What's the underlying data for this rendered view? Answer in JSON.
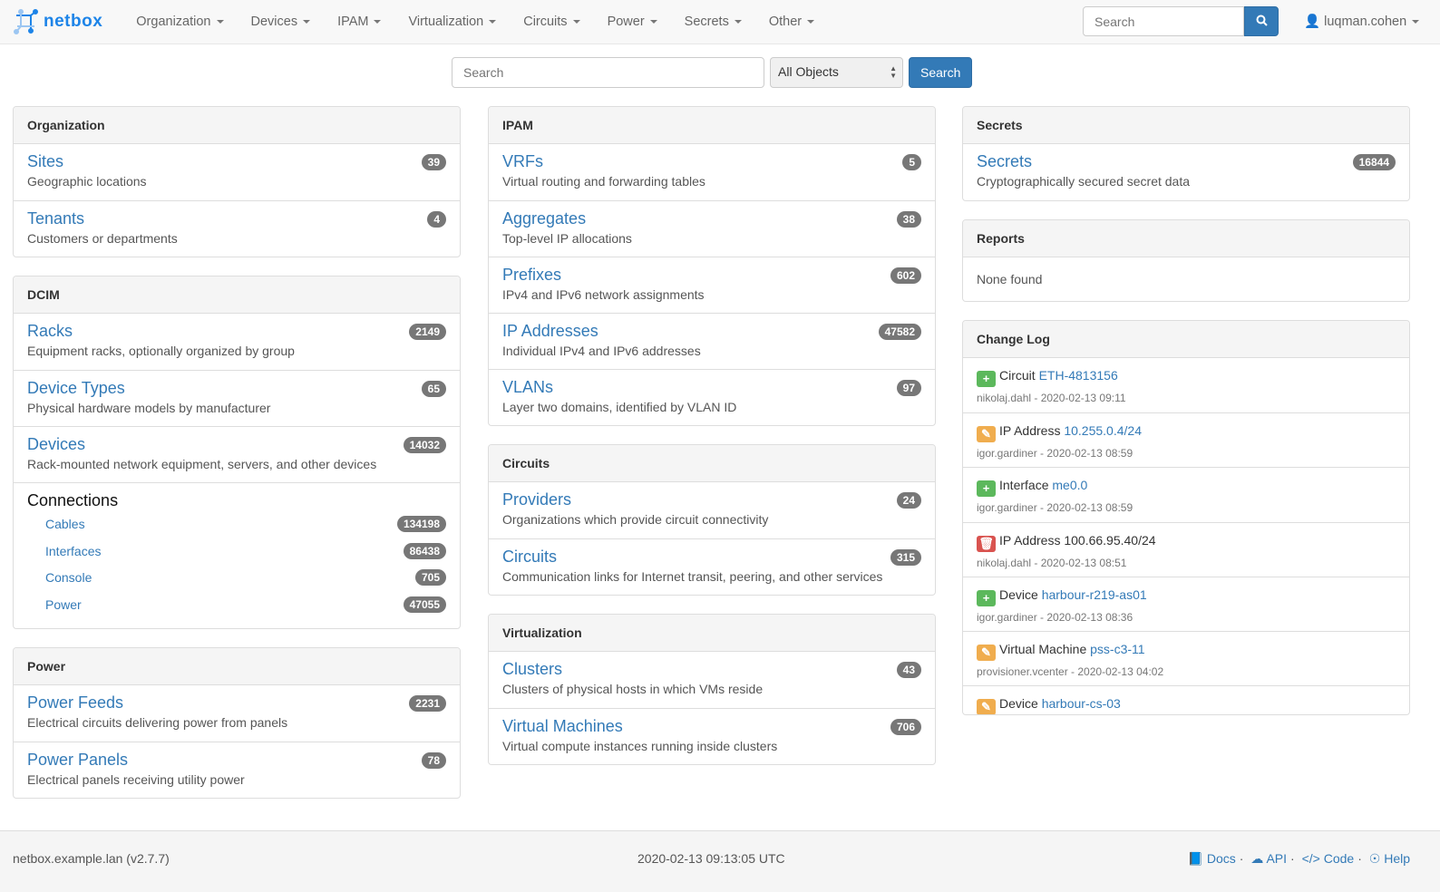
{
  "brand": "netbox",
  "nav": {
    "items": [
      "Organization",
      "Devices",
      "IPAM",
      "Virtualization",
      "Circuits",
      "Power",
      "Secrets",
      "Other"
    ],
    "search_placeholder": "Search",
    "user": "luqman.cohen"
  },
  "search": {
    "placeholder": "Search",
    "scope": "All Objects",
    "button": "Search"
  },
  "columns": [
    [
      {
        "title": "Organization",
        "rows": [
          {
            "label": "Sites",
            "desc": "Geographic locations",
            "count": "39"
          },
          {
            "label": "Tenants",
            "desc": "Customers or departments",
            "count": "4"
          }
        ]
      },
      {
        "title": "DCIM",
        "rows": [
          {
            "label": "Racks",
            "desc": "Equipment racks, optionally organized by group",
            "count": "2149"
          },
          {
            "label": "Device Types",
            "desc": "Physical hardware models by manufacturer",
            "count": "65"
          },
          {
            "label": "Devices",
            "desc": "Rack-mounted network equipment, servers, and other devices",
            "count": "14032"
          }
        ],
        "connections": {
          "title": "Connections",
          "items": [
            {
              "label": "Cables",
              "count": "134198"
            },
            {
              "label": "Interfaces",
              "count": "86438"
            },
            {
              "label": "Console",
              "count": "705"
            },
            {
              "label": "Power",
              "count": "47055"
            }
          ]
        }
      },
      {
        "title": "Power",
        "rows": [
          {
            "label": "Power Feeds",
            "desc": "Electrical circuits delivering power from panels",
            "count": "2231"
          },
          {
            "label": "Power Panels",
            "desc": "Electrical panels receiving utility power",
            "count": "78"
          }
        ]
      }
    ],
    [
      {
        "title": "IPAM",
        "rows": [
          {
            "label": "VRFs",
            "desc": "Virtual routing and forwarding tables",
            "count": "5"
          },
          {
            "label": "Aggregates",
            "desc": "Top-level IP allocations",
            "count": "38"
          },
          {
            "label": "Prefixes",
            "desc": "IPv4 and IPv6 network assignments",
            "count": "602"
          },
          {
            "label": "IP Addresses",
            "desc": "Individual IPv4 and IPv6 addresses",
            "count": "47582"
          },
          {
            "label": "VLANs",
            "desc": "Layer two domains, identified by VLAN ID",
            "count": "97"
          }
        ]
      },
      {
        "title": "Circuits",
        "rows": [
          {
            "label": "Providers",
            "desc": "Organizations which provide circuit connectivity",
            "count": "24"
          },
          {
            "label": "Circuits",
            "desc": "Communication links for Internet transit, peering, and other services",
            "count": "315"
          }
        ]
      },
      {
        "title": "Virtualization",
        "rows": [
          {
            "label": "Clusters",
            "desc": "Clusters of physical hosts in which VMs reside",
            "count": "43"
          },
          {
            "label": "Virtual Machines",
            "desc": "Virtual compute instances running inside clusters",
            "count": "706"
          }
        ]
      }
    ],
    [
      {
        "title": "Secrets",
        "rows": [
          {
            "label": "Secrets",
            "desc": "Cryptographically secured secret data",
            "count": "16844"
          }
        ]
      },
      {
        "title": "Reports",
        "none": "None found"
      },
      {
        "title": "Change Log",
        "changes": [
          {
            "action": "create",
            "type": "Circuit",
            "object": "ETH-4813156",
            "linked": true,
            "meta": "nikolaj.dahl - 2020-02-13 09:11"
          },
          {
            "action": "update",
            "type": "IP Address",
            "object": "10.255.0.4/24",
            "linked": true,
            "meta": "igor.gardiner - 2020-02-13 08:59"
          },
          {
            "action": "create",
            "type": "Interface",
            "object": "me0.0",
            "linked": true,
            "meta": "igor.gardiner - 2020-02-13 08:59"
          },
          {
            "action": "delete",
            "type": "IP Address",
            "object": "100.66.95.40/24",
            "linked": false,
            "meta": "nikolaj.dahl - 2020-02-13 08:51"
          },
          {
            "action": "create",
            "type": "Device",
            "object": "harbour-r219-as01",
            "linked": true,
            "meta": "igor.gardiner - 2020-02-13 08:36"
          },
          {
            "action": "update",
            "type": "Virtual Machine",
            "object": "pss-c3-11",
            "linked": true,
            "meta": "provisioner.vcenter - 2020-02-13 04:02"
          },
          {
            "action": "update",
            "type": "Device",
            "object": "harbour-cs-03",
            "linked": true,
            "meta": ""
          }
        ]
      }
    ]
  ],
  "footer": {
    "host": "netbox.example.lan (v2.7.7)",
    "time": "2020-02-13 09:13:05 UTC",
    "links": [
      "Docs",
      "API",
      "Code",
      "Help"
    ]
  },
  "colors": {
    "link": "#337ab7",
    "badge": "#777777",
    "create": "#5cb85c",
    "update": "#f0ad4e",
    "delete": "#d9534f"
  }
}
